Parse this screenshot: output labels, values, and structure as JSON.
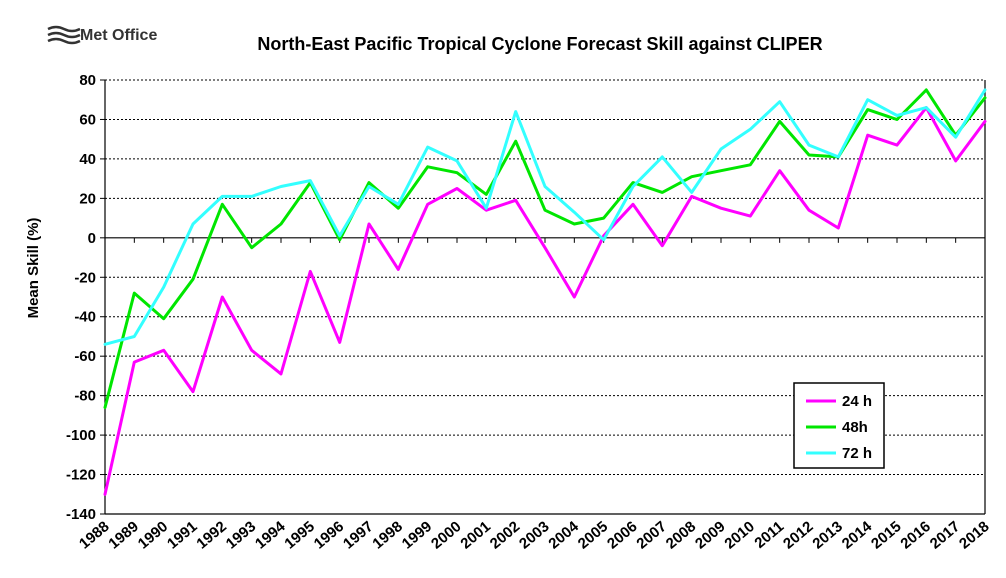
{
  "branding": {
    "logo_text": "Met Office"
  },
  "chart_data": {
    "type": "line",
    "title": "North-East Pacific Tropical Cyclone Forecast Skill against CLIPER",
    "xlabel": "",
    "ylabel": "Mean Skill (%)",
    "ylim": [
      -140,
      80
    ],
    "yticks": [
      80,
      60,
      40,
      20,
      0,
      -20,
      -40,
      -60,
      -80,
      -100,
      -120,
      -140
    ],
    "categories": [
      "1988",
      "1989",
      "1990",
      "1991",
      "1992",
      "1993",
      "1994",
      "1995",
      "1996",
      "1997",
      "1998",
      "1999",
      "2000",
      "2001",
      "2002",
      "2003",
      "2004",
      "2005",
      "2006",
      "2007",
      "2008",
      "2009",
      "2010",
      "2011",
      "2012",
      "2013",
      "2014",
      "2015",
      "2016",
      "2017",
      "2018"
    ],
    "grid": "horizontal dashed",
    "legend_position": "bottom-right",
    "series": [
      {
        "name": "24 h",
        "color": "#ff00ff",
        "values": [
          -130,
          -63,
          -57,
          -78,
          -30,
          -57,
          -69,
          -17,
          -53,
          7,
          -16,
          17,
          25,
          14,
          19,
          -5,
          -30,
          1,
          17,
          -4,
          21,
          15,
          11,
          34,
          14,
          5,
          52,
          47,
          66,
          39,
          59
        ]
      },
      {
        "name": "48h",
        "color": "#00e600",
        "values": [
          -86,
          -28,
          -41,
          -21,
          17,
          -5,
          7,
          28,
          -1,
          28,
          15,
          36,
          33,
          22,
          49,
          14,
          7,
          10,
          28,
          23,
          31,
          34,
          37,
          59,
          42,
          41,
          65,
          60,
          75,
          52,
          71
        ]
      },
      {
        "name": "72 h",
        "color": "#33ffff",
        "values": [
          -54,
          -50,
          -25,
          7,
          21,
          21,
          26,
          29,
          1,
          26,
          17,
          46,
          39,
          15,
          64,
          26,
          13,
          -1,
          26,
          41,
          23,
          45,
          55,
          69,
          47,
          41,
          70,
          62,
          66,
          51,
          75
        ]
      }
    ]
  }
}
